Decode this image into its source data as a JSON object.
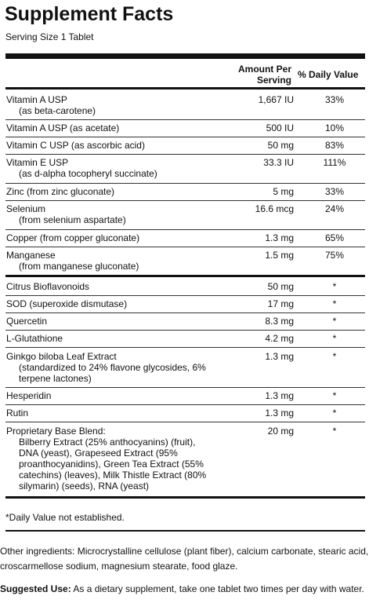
{
  "title": "Supplement Facts",
  "serving_size": "Serving Size 1 Tablet",
  "header": {
    "amount_line1": "Amount Per",
    "amount_line2": "Serving",
    "daily_value": "% Daily Value"
  },
  "vitamins": [
    {
      "name": "Vitamin A USP",
      "sub": "(as beta-carotene)",
      "amount": "1,667 IU",
      "dv": "33%"
    },
    {
      "name": "Vitamin A USP (as acetate)",
      "sub": "",
      "amount": "500 IU",
      "dv": "10%"
    },
    {
      "name": "Vitamin C USP (as ascorbic acid)",
      "sub": "",
      "amount": "50 mg",
      "dv": "83%"
    },
    {
      "name": "Vitamin E USP",
      "sub": "(as d-alpha tocopheryl succinate)",
      "amount": "33.3 IU",
      "dv": "111%"
    },
    {
      "name": "Zinc (from zinc gluconate)",
      "sub": "",
      "amount": "5 mg",
      "dv": "33%"
    },
    {
      "name": "Selenium",
      "sub": "(from selenium aspartate)",
      "amount": "16.6 mcg",
      "dv": "24%"
    },
    {
      "name": "Copper (from copper gluconate)",
      "sub": "",
      "amount": "1.3 mg",
      "dv": "65%"
    },
    {
      "name": "Manganese",
      "sub": "(from manganese gluconate)",
      "amount": "1.5 mg",
      "dv": "75%"
    }
  ],
  "others": [
    {
      "name": "Citrus Bioflavonoids",
      "sub": "",
      "amount": "50 mg",
      "dv": "*"
    },
    {
      "name": "SOD (superoxide dismutase)",
      "sub": "",
      "amount": "17 mg",
      "dv": "*"
    },
    {
      "name": "Quercetin",
      "sub": "",
      "amount": "8.3 mg",
      "dv": "*"
    },
    {
      "name": "L-Glutathione",
      "sub": "",
      "amount": "4.2 mg",
      "dv": "*"
    },
    {
      "name": "Ginkgo biloba Leaf Extract",
      "sub": "(standardized to 24% flavone glycosides, 6% terpene lactones)",
      "amount": "1.3 mg",
      "dv": "*"
    },
    {
      "name": "Hesperidin",
      "sub": "",
      "amount": "1.3 mg",
      "dv": "*"
    },
    {
      "name": "Rutin",
      "sub": "",
      "amount": "1.3 mg",
      "dv": "*"
    },
    {
      "name": "Proprietary Base Blend:",
      "sub": "Bilberry Extract (25% anthocyanins) (fruit), DNA (yeast), Grapeseed Extract (95% proanthocyanidins), Green Tea Extract (55% catechins) (leaves), Milk Thistle Extract (80% silymarin) (seeds), RNA (yeast)",
      "amount": "20 mg",
      "dv": "*"
    }
  ],
  "footnote": "*Daily Value not established.",
  "other_ingredients": "Other ingredients: Microcrystalline cellulose (plant fiber), calcium carbonate, stearic acid, croscarmellose sodium, magnesium stearate, food glaze.",
  "suggested_use": {
    "label": "Suggested Use:",
    "text": " As a dietary supplement, take one tablet two times per day with water."
  }
}
